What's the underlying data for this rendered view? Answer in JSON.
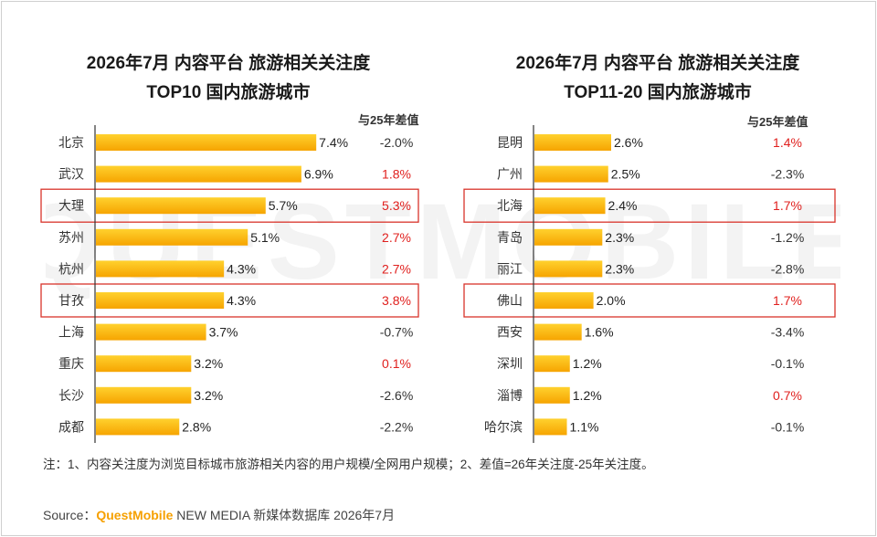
{
  "watermark_text": "QUESTMOBILE",
  "colors": {
    "bar_top": "#ffd12e",
    "bar_bottom": "#f6a400",
    "axis": "#333333",
    "highlight_box": "#d9342b",
    "positive": "#e0201e",
    "negative": "#333333",
    "brand": "#f6a000"
  },
  "chart_data": [
    {
      "type": "bar",
      "orientation": "horizontal",
      "title_line1": "2026年7月 内容平台 旅游相关关注度",
      "title_line2": "TOP10 国内旅游城市",
      "diff_header": "与25年差值",
      "categories": [
        "北京",
        "武汉",
        "大理",
        "苏州",
        "杭州",
        "甘孜",
        "上海",
        "重庆",
        "长沙",
        "成都"
      ],
      "values": [
        7.4,
        6.9,
        5.7,
        5.1,
        4.3,
        4.3,
        3.7,
        3.2,
        3.2,
        2.8
      ],
      "value_labels": [
        "7.4%",
        "6.9%",
        "5.7%",
        "5.1%",
        "4.3%",
        "4.3%",
        "3.7%",
        "3.2%",
        "3.2%",
        "2.8%"
      ],
      "diffs": [
        -2.0,
        1.8,
        5.3,
        2.7,
        2.7,
        3.8,
        -0.7,
        0.1,
        -2.6,
        -2.2
      ],
      "diff_labels": [
        "-2.0%",
        "1.8%",
        "5.3%",
        "2.7%",
        "2.7%",
        "3.8%",
        "-0.7%",
        "0.1%",
        "-2.6%",
        "-2.2%"
      ],
      "highlighted": [
        "大理",
        "甘孜"
      ],
      "xlim": [
        0,
        8.1
      ]
    },
    {
      "type": "bar",
      "orientation": "horizontal",
      "title_line1": "2026年7月 内容平台 旅游相关关注度",
      "title_line2": "TOP11-20 国内旅游城市",
      "diff_header": "与25年差值",
      "categories": [
        "昆明",
        "广州",
        "北海",
        "青岛",
        "丽江",
        "佛山",
        "西安",
        "深圳",
        "淄博",
        "哈尔滨"
      ],
      "values": [
        2.6,
        2.5,
        2.4,
        2.3,
        2.3,
        2.0,
        1.6,
        1.2,
        1.2,
        1.1
      ],
      "value_labels": [
        "2.6%",
        "2.5%",
        "2.4%",
        "2.3%",
        "2.3%",
        "2.0%",
        "1.6%",
        "1.2%",
        "1.2%",
        "1.1%"
      ],
      "diffs": [
        1.4,
        -2.3,
        1.7,
        -1.2,
        -2.8,
        1.7,
        -3.4,
        -0.1,
        0.7,
        -0.1
      ],
      "diff_labels": [
        "1.4%",
        "-2.3%",
        "1.7%",
        "-1.2%",
        "-2.8%",
        "1.7%",
        "-3.4%",
        "-0.1%",
        "0.7%",
        "-0.1%"
      ],
      "highlighted": [
        "北海",
        "佛山"
      ],
      "xlim": [
        0,
        2.6
      ]
    }
  ],
  "note": "注：1、内容关注度为浏览目标城市旅游相关内容的用户规模/全网用户规模；2、差值=26年关注度-25年关注度。",
  "source": {
    "label": "Source：",
    "brand": "QuestMobile",
    "rest": " NEW MEDIA 新媒体数据库 2026年7月"
  }
}
